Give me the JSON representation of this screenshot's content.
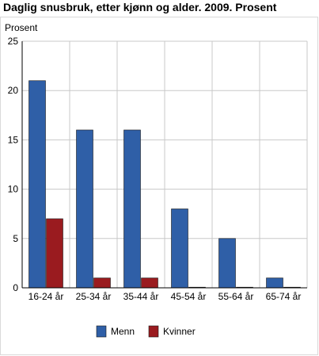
{
  "chart_data": {
    "type": "bar",
    "title": "Daglig snusbruk, etter kjønn og alder. 2009. Prosent",
    "ylabel": "Prosent",
    "xlabel": "",
    "ylim": [
      0,
      25
    ],
    "yticks": [
      0,
      5,
      10,
      15,
      20,
      25
    ],
    "grid": true,
    "legend_position": "bottom",
    "categories": [
      "16-24 år",
      "25-34 år",
      "35-44 år",
      "45-54 år",
      "55-64 år",
      "65-74 år"
    ],
    "series": [
      {
        "name": "Menn",
        "color": "#2f5fa7",
        "values": [
          21,
          16,
          16,
          8,
          5,
          1
        ]
      },
      {
        "name": "Kvinner",
        "color": "#9a1b1f",
        "values": [
          7,
          1,
          1,
          0,
          0,
          0
        ]
      }
    ]
  }
}
